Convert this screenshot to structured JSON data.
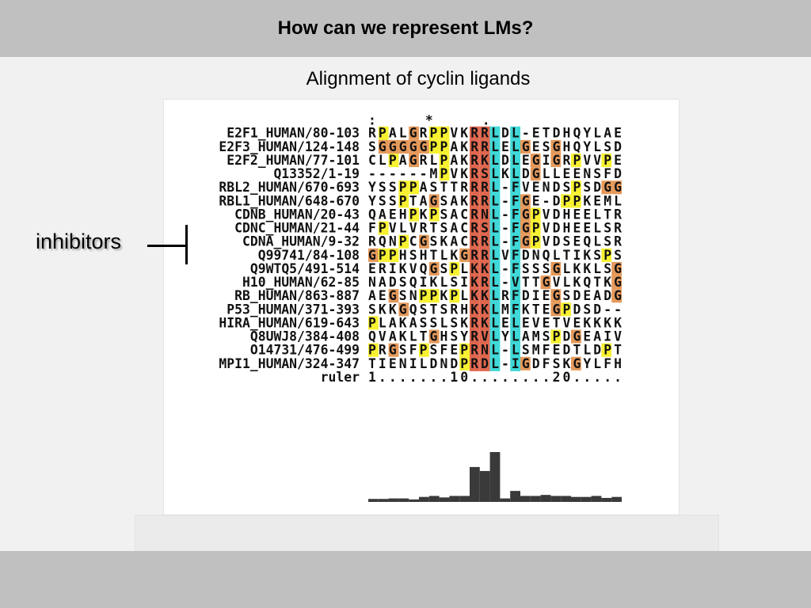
{
  "header": {
    "title": "How can we represent LMs?"
  },
  "subtitle": "Alignment of cyclin ligands",
  "annotation": {
    "label": "inhibitors"
  },
  "alignment": {
    "consensus_line": "       : * .",
    "rows": [
      {
        "name": "E2F1_HUMAN/80-103",
        "seq": "RPALGRPPVKRRLDL-ETDHQYLAE"
      },
      {
        "name": "E2F3_HUMAN/124-148",
        "seq": "SGGGGGPPAKRRLELGESGHQYLSD"
      },
      {
        "name": "E2F2_HUMAN/77-101",
        "seq": "CLPAGRLPAKRKLDLEGIGRPVVPE"
      },
      {
        "name": "Q13352/1-19",
        "seq": "------MPVKRSLKLDGLLEENSFD"
      },
      {
        "name": "RBL2_HUMAN/670-693",
        "seq": "YSSPPASTTRRRL-FVENDSPSDGG"
      },
      {
        "name": "RBL1_HUMAN/648-670",
        "seq": "YSSPTAGSAKRRL-FGE-DPPKEML"
      },
      {
        "name": "CDNB_HUMAN/20-43",
        "seq": "QAEHPKPSACRNL-FGPVDHEELTR"
      },
      {
        "name": "CDNC_HUMAN/21-44",
        "seq": "FPVLVRTSACRSL-FGPVDHEELSR"
      },
      {
        "name": "CDNA_HUMAN/9-32",
        "seq": "RQNPCGSKACRRL-FGPVDSEQLSR"
      },
      {
        "name": "Q99741/84-108",
        "seq": "GPPHSHTLKGRRLVFDNQLTIKSPS"
      },
      {
        "name": "Q9WTQ5/491-514",
        "seq": "ERIKVQGSPLKKL-FSSSGLKKLSG"
      },
      {
        "name": "H10_HUMAN/62-85",
        "seq": "NADSQIKLSIKRL-VTTGVLKQTKG"
      },
      {
        "name": "RB_HUMAN/863-887",
        "seq": "AEGSNPPKPLKKLRFDIEGSDEADG"
      },
      {
        "name": "P53_HUMAN/371-393",
        "seq": "SKKGQSTSRHKKLMFKTEGPDSD--"
      },
      {
        "name": "HIRA_HUMAN/619-643",
        "seq": "PLAKASSLSKRKLELEVETVEKKKK"
      },
      {
        "name": "Q8UWJ8/384-408",
        "seq": "QVAKLTGHSYRVLYLAMSPDGEAIV"
      },
      {
        "name": "O14731/476-499",
        "seq": "PRGSFPSFEPRNL-LSMFEDTLDPT"
      },
      {
        "name": "MPI1_HUMAN/324-347",
        "seq": "TIENILDNDPRDL-IGDFSKGYLFH"
      },
      {
        "name": "ruler",
        "seq": "1.......10........20....."
      }
    ],
    "conservation": [
      0.06,
      0.06,
      0.07,
      0.07,
      0.05,
      0.1,
      0.12,
      0.09,
      0.12,
      0.12,
      0.7,
      0.62,
      1.0,
      0.07,
      0.22,
      0.12,
      0.12,
      0.14,
      0.12,
      0.12,
      0.1,
      0.1,
      0.12,
      0.08,
      0.1
    ],
    "colors": {
      "yellow": "#f7f130",
      "orange": "#e5995a",
      "red": "#e0674f",
      "cyan": "#40d8d8",
      "bar": "#3a3a3a"
    }
  }
}
